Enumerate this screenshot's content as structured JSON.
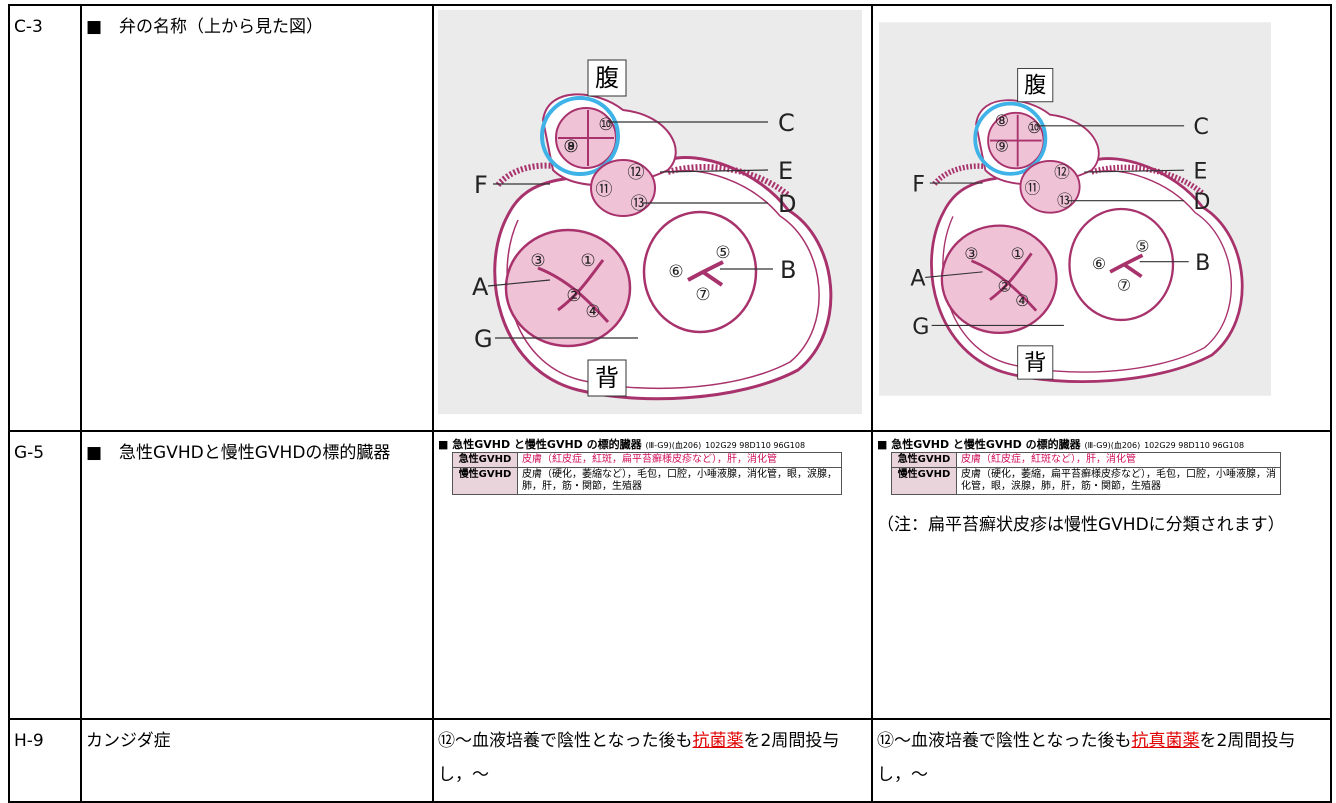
{
  "rows": [
    {
      "id": "C-3",
      "topic": "■　弁の名称（上から見た図）",
      "before": {
        "top": "腹",
        "bottom": "背",
        "callouts": [
          "C",
          "E",
          "F",
          "D",
          "A",
          "B",
          "G"
        ],
        "valves": [
          "①",
          "②",
          "③",
          "④",
          "⑤",
          "⑥",
          "⑦",
          "⑧",
          "⑨",
          "⑩",
          "⑪",
          "⑫",
          "⑬"
        ]
      },
      "after": {
        "top": "腹",
        "bottom": "背",
        "callouts": [
          "C",
          "E",
          "F",
          "D",
          "A",
          "B",
          "G"
        ],
        "valves": [
          "①",
          "②",
          "③",
          "④",
          "⑤",
          "⑥",
          "⑦",
          "⑧",
          "⑨",
          "⑩",
          "⑪",
          "⑫",
          "⑬"
        ]
      }
    },
    {
      "id": "G-5",
      "topic": "■　急性GVHDと慢性GVHDの標的臓器",
      "before": {
        "heading": "■ 急性GVHD と慢性GVHD の標的臓器",
        "ref": "(Ⅲ-G9)(血206)",
        "codes": "102G29 98D110 96G108",
        "rows": [
          [
            "急性GVHD",
            "皮膚（紅皮症，紅斑，扁平苔癬様皮疹など），肝，消化管"
          ],
          [
            "慢性GVHD",
            "皮膚（硬化，萎縮など），毛包，口腔，小唾液腺，消化管，眼，涙腺，肺，肝，筋・関節，生殖器"
          ]
        ]
      },
      "after": {
        "heading": "■ 急性GVHD と慢性GVHD の標的臓器",
        "ref": "(Ⅲ-G9)(血206)",
        "codes": "102G29 98D110 96G108",
        "rows": [
          [
            "急性GVHD",
            "皮膚（紅皮症，紅斑など），肝，消化管"
          ],
          [
            "慢性GVHD",
            "皮膚（硬化，萎縮，扁平苔癬様皮疹など），毛包，口腔，小唾液腺，消化管，眼，涙腺，肺，肝，筋・関節，生殖器"
          ]
        ],
        "note": "（注：扁平苔癬状皮疹は慢性GVHDに分類されます）"
      }
    },
    {
      "id": "H-9",
      "topic": "カンジダ症",
      "before": {
        "segments": [
          "⑫～血液培養で陰性となった後も",
          "抗菌薬",
          "を2周間投与し，～"
        ]
      },
      "after": {
        "segments": [
          "⑫～血液培養で陰性となった後も",
          "抗真菌薬",
          "を2周間投与し，～"
        ]
      }
    }
  ]
}
